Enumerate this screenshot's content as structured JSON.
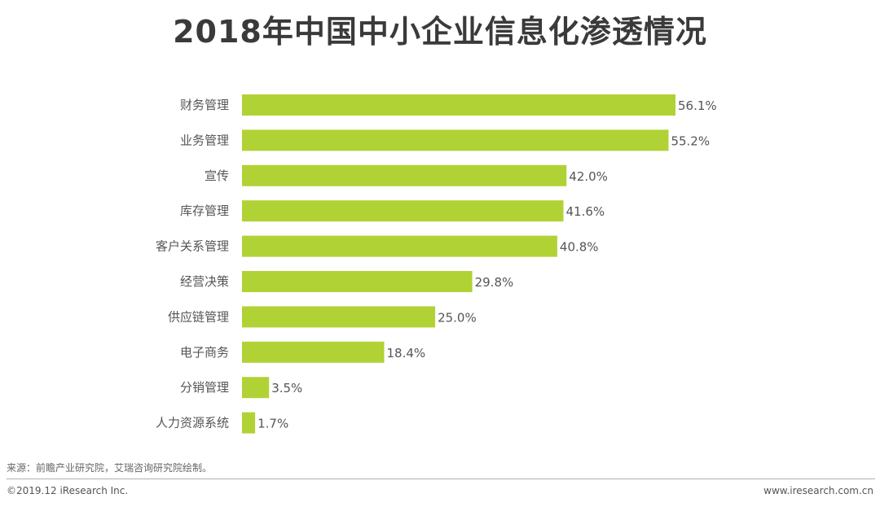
{
  "chart_data": {
    "type": "bar",
    "orientation": "horizontal",
    "title": "2018年中国中小企业信息化渗透情况",
    "categories": [
      "财务管理",
      "业务管理",
      "宣传",
      "库存管理",
      "客户关系管理",
      "经营决策",
      "供应链管理",
      "电子商务",
      "分销管理",
      "人力资源系统"
    ],
    "values": [
      56.1,
      55.2,
      42.0,
      41.6,
      40.8,
      29.8,
      25.0,
      18.4,
      3.5,
      1.7
    ],
    "value_labels": [
      "56.1%",
      "55.2%",
      "42.0%",
      "41.6%",
      "40.8%",
      "29.8%",
      "25.0%",
      "18.4%",
      "3.5%",
      "1.7%"
    ],
    "unit": "%",
    "xlabel": "",
    "ylabel": "",
    "grid": false,
    "bar_color": "#b1d235"
  },
  "footer": {
    "source": "来源：前瞻产业研究院，艾瑞咨询研究院绘制。",
    "copyright": "©2019.12 iResearch Inc.",
    "website": "www.iresearch.com.cn"
  }
}
